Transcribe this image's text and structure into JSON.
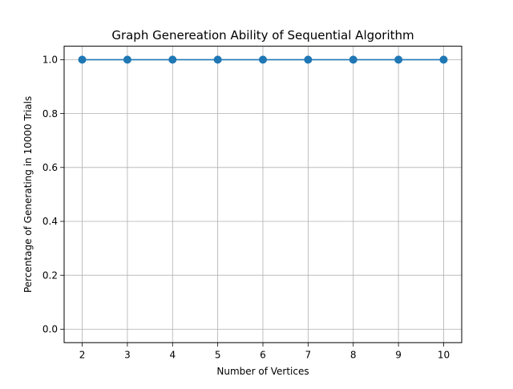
{
  "chart_data": {
    "type": "line",
    "title": "Graph Genereation Ability of Sequential Algorithm",
    "xlabel": "Number of Vertices",
    "ylabel": "Percentage of Generating in 10000 Trials",
    "x": [
      2,
      3,
      4,
      5,
      6,
      7,
      8,
      9,
      10
    ],
    "series": [
      {
        "values": [
          1.0,
          1.0,
          1.0,
          1.0,
          1.0,
          1.0,
          1.0,
          1.0,
          1.0
        ]
      }
    ],
    "xticks": [
      "2",
      "3",
      "4",
      "5",
      "6",
      "7",
      "8",
      "9",
      "10"
    ],
    "yticks": [
      "0.0",
      "0.2",
      "0.4",
      "0.6",
      "0.8",
      "1.0"
    ],
    "xlim": [
      1.6,
      10.4
    ],
    "ylim": [
      -0.05,
      1.05
    ],
    "grid": true,
    "marker": "circle",
    "colors": {
      "line": "#1f77b4",
      "grid": "#b0b0b0",
      "axes": "#000000"
    }
  }
}
